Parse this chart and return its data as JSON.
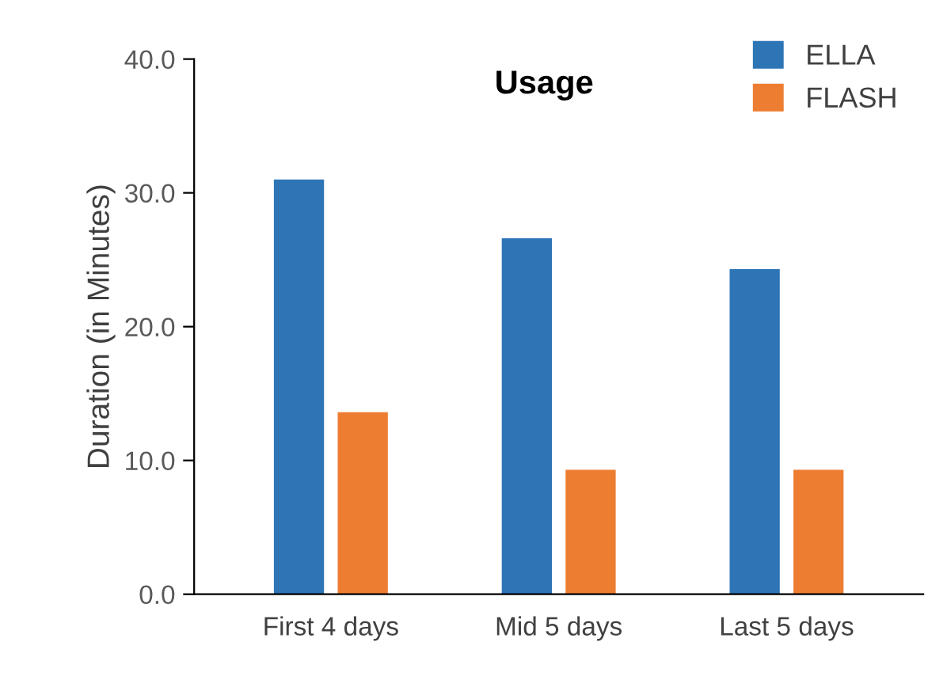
{
  "chart_data": {
    "type": "bar",
    "title": "Usage",
    "ylabel": "Duration (in Minutes)",
    "categories": [
      "First 4 days",
      "Mid 5 days",
      "Last 5 days"
    ],
    "series": [
      {
        "name": "ELLA",
        "color": "#2e75b6",
        "values": [
          31.0,
          26.6,
          24.3
        ]
      },
      {
        "name": "FLASH",
        "color": "#ed7d31",
        "values": [
          13.6,
          9.3,
          9.3
        ]
      }
    ],
    "ylim": [
      0,
      40
    ],
    "yticks": [
      {
        "value": 0,
        "label": "0.0"
      },
      {
        "value": 10,
        "label": "10.0"
      },
      {
        "value": 20,
        "label": "20.0"
      },
      {
        "value": 30,
        "label": "30.0"
      },
      {
        "value": 40,
        "label": "40.0"
      }
    ],
    "grid": false,
    "legend": "top right"
  }
}
